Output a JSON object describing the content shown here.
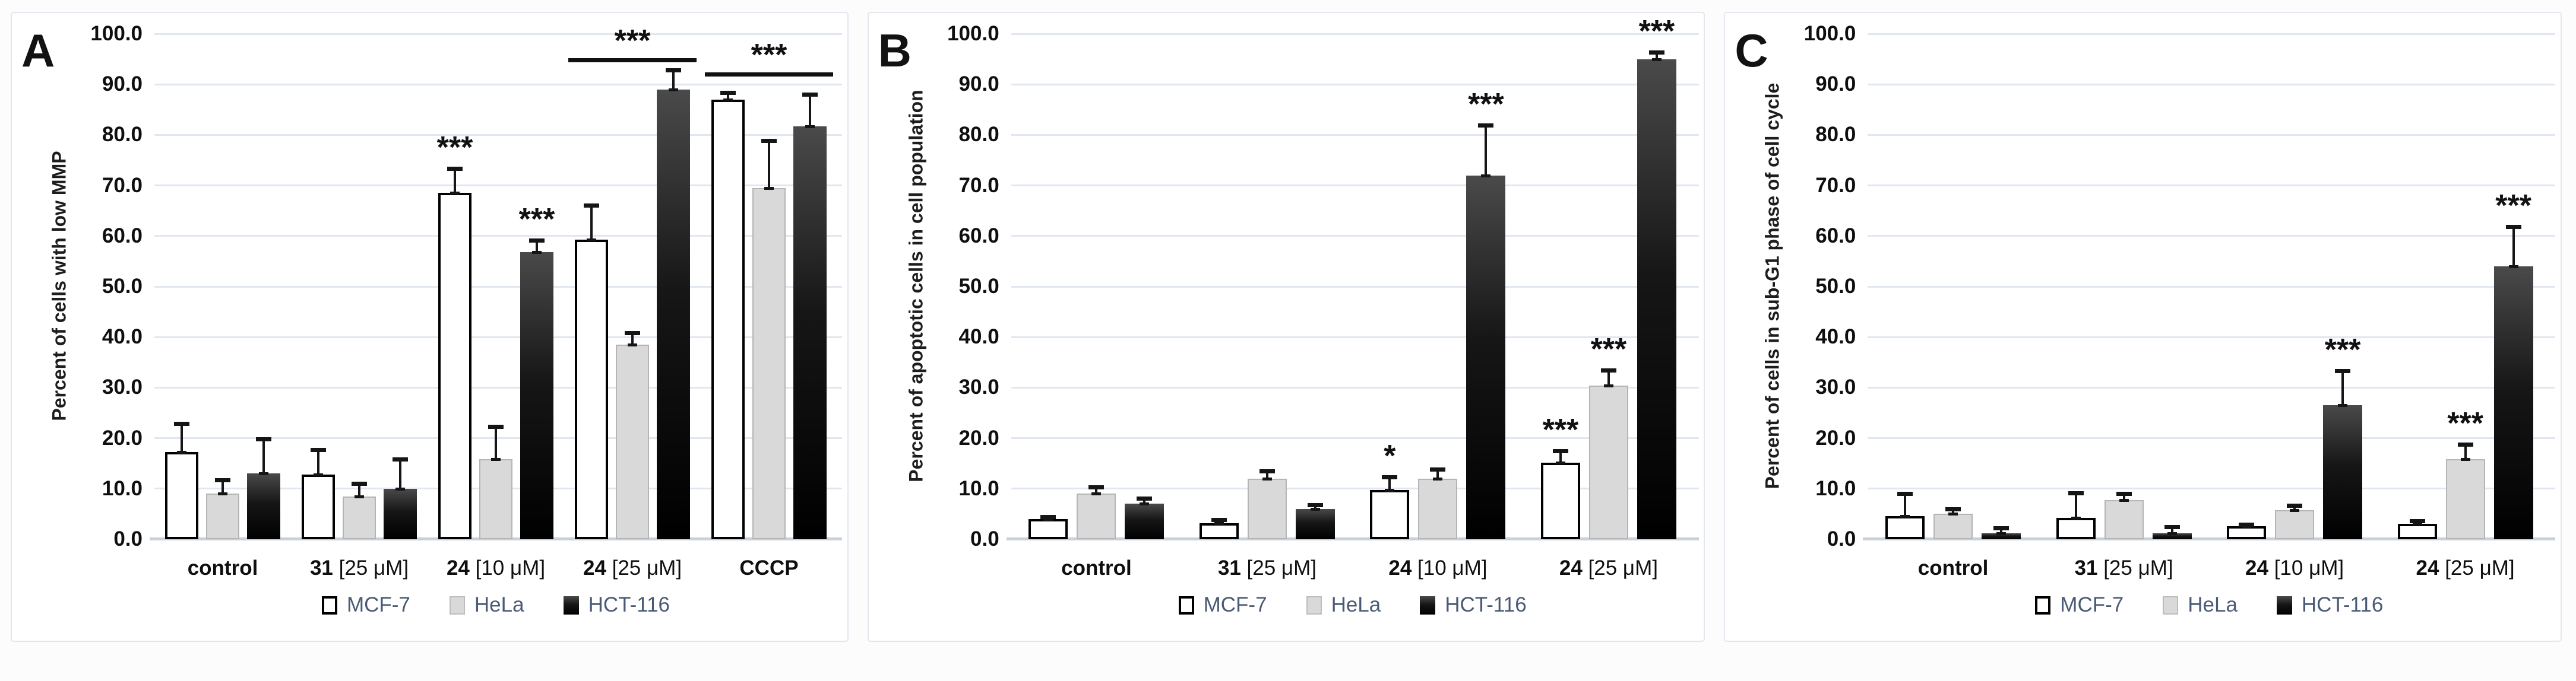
{
  "colors": {
    "mcf7_fill": "#ffffff",
    "hela_fill": "#d9d9d9",
    "hct116_fill": "#000000",
    "gridline": "#e0e7f1",
    "axis_line": "#c9d0da",
    "legend_text": "#4a5a75",
    "error_bar": "#151515"
  },
  "legend": [
    {
      "label": "MCF-7",
      "swatch": "mcf7"
    },
    {
      "label": "HeLa",
      "swatch": "hela"
    },
    {
      "label": "HCT-116",
      "swatch": "hct116"
    }
  ],
  "chart_data": [
    {
      "type": "bar",
      "panel_label": "A",
      "ylabel": "Percent of cells with low MMP",
      "ylim": [
        0,
        100
      ],
      "ytick_step": 10,
      "ytick_labels": [
        "0.0",
        "10.0",
        "20.0",
        "30.0",
        "40.0",
        "50.0",
        "60.0",
        "70.0",
        "80.0",
        "90.0",
        "100.0"
      ],
      "grid": true,
      "legend_position": "bottom",
      "series_names": [
        "MCF-7",
        "HeLa",
        "HCT-116"
      ],
      "categories": [
        {
          "bold": "control",
          "rest": ""
        },
        {
          "bold": "31",
          "rest": " [25 μM]"
        },
        {
          "bold": "24",
          "rest": " [10 μM]"
        },
        {
          "bold": "24",
          "rest": " [25 μM]"
        },
        {
          "bold": "CCCP",
          "rest": ""
        }
      ],
      "groups": [
        {
          "values": [
            17.3,
            9.0,
            13.0
          ],
          "err_top": [
            23.0,
            11.8,
            20.0
          ],
          "sig": [
            "",
            "",
            ""
          ]
        },
        {
          "values": [
            12.8,
            8.4,
            10.0
          ],
          "err_top": [
            17.8,
            11.2,
            16.0
          ],
          "sig": [
            "",
            "",
            ""
          ]
        },
        {
          "values": [
            68.5,
            15.8,
            56.8
          ],
          "err_top": [
            73.5,
            22.4,
            59.3
          ],
          "sig": [
            "***",
            "",
            "***"
          ]
        },
        {
          "values": [
            59.3,
            38.5,
            89.0
          ],
          "err_top": [
            66.2,
            41.0,
            93.0
          ],
          "sig": [
            "",
            "",
            ""
          ]
        },
        {
          "values": [
            87.0,
            69.5,
            81.7
          ],
          "err_top": [
            88.5,
            79.0,
            88.2
          ],
          "sig": [
            "",
            "",
            ""
          ]
        }
      ],
      "sig_lines": [
        {
          "group_index": 3,
          "value": 94.4,
          "label": "***"
        },
        {
          "group_index": 4,
          "value": 91.5,
          "label": "***"
        }
      ]
    },
    {
      "type": "bar",
      "panel_label": "B",
      "ylabel": "Percent of  apoptotic cells in cell population",
      "ylim": [
        0,
        100
      ],
      "ytick_step": 10,
      "ytick_labels": [
        "0.0",
        "10.0",
        "20.0",
        "30.0",
        "40.0",
        "50.0",
        "60.0",
        "70.0",
        "80.0",
        "90.0",
        "100.0"
      ],
      "grid": true,
      "legend_position": "bottom",
      "series_names": [
        "MCF-7",
        "HeLa",
        "HCT-116"
      ],
      "categories": [
        {
          "bold": "control",
          "rest": ""
        },
        {
          "bold": "31",
          "rest": " [25 μM]"
        },
        {
          "bold": "24",
          "rest": " [10 μM]"
        },
        {
          "bold": "24",
          "rest": " [25 μM]"
        }
      ],
      "groups": [
        {
          "values": [
            4.0,
            9.0,
            7.0
          ],
          "err_top": [
            4.6,
            10.5,
            8.2
          ],
          "sig": [
            "",
            "",
            ""
          ]
        },
        {
          "values": [
            3.2,
            12.0,
            6.0
          ],
          "err_top": [
            4.0,
            13.6,
            6.9
          ],
          "sig": [
            "",
            "",
            ""
          ]
        },
        {
          "values": [
            9.8,
            12.0,
            72.0
          ],
          "err_top": [
            12.5,
            14.0,
            82.0
          ],
          "sig": [
            "*",
            "",
            "***"
          ]
        },
        {
          "values": [
            15.2,
            30.4,
            95.0
          ],
          "err_top": [
            17.6,
            33.6,
            96.5
          ],
          "sig": [
            "***",
            "***",
            "***"
          ]
        }
      ],
      "sig_lines": []
    },
    {
      "type": "bar",
      "panel_label": "C",
      "ylabel": "Percent of cells in sub-G1 phase of cell cycle",
      "ylim": [
        0,
        100
      ],
      "ytick_step": 10,
      "ytick_labels": [
        "0.0",
        "10.0",
        "20.0",
        "30.0",
        "40.0",
        "50.0",
        "60.0",
        "70.0",
        "80.0",
        "90.0",
        "100.0"
      ],
      "grid": true,
      "legend_position": "bottom",
      "series_names": [
        "MCF-7",
        "HeLa",
        "HCT-116"
      ],
      "categories": [
        {
          "bold": "control",
          "rest": ""
        },
        {
          "bold": "31",
          "rest": " [25 μM]"
        },
        {
          "bold": "24",
          "rest": " [10 μM]"
        },
        {
          "bold": "24",
          "rest": " [25 μM]"
        }
      ],
      "groups": [
        {
          "values": [
            4.6,
            5.0,
            1.2
          ],
          "err_top": [
            9.2,
            6.1,
            2.3
          ],
          "sig": [
            "",
            "",
            ""
          ]
        },
        {
          "values": [
            4.2,
            7.7,
            1.2
          ],
          "err_top": [
            9.3,
            9.2,
            2.6
          ],
          "sig": [
            "",
            "",
            ""
          ]
        },
        {
          "values": [
            2.6,
            5.8,
            26.5
          ],
          "err_top": [
            3.1,
            6.8,
            33.5
          ],
          "sig": [
            "",
            "",
            "***"
          ]
        },
        {
          "values": [
            3.1,
            15.8,
            54.0
          ],
          "err_top": [
            3.8,
            18.9,
            62.0
          ],
          "sig": [
            "",
            "***",
            "***"
          ]
        }
      ],
      "sig_lines": []
    }
  ]
}
